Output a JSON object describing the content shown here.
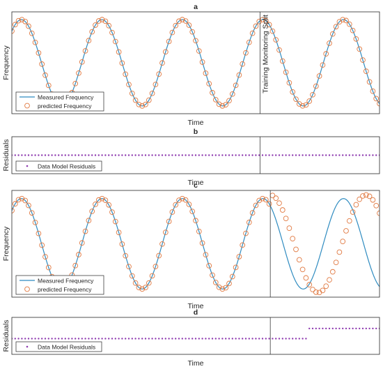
{
  "colors": {
    "measured": "#2e8bc0",
    "predicted": "#e07840",
    "residuals": "#8e3bb0",
    "axes": "#262626",
    "split": "#505050"
  },
  "split_label": "Training Monitoring Split",
  "chart_data": [
    {
      "id": "a",
      "type": "line",
      "title": "a",
      "xlabel": "Time",
      "ylabel": "Frequency",
      "xlim": [
        0,
        100
      ],
      "ylim": [
        -1.18,
        1.18
      ],
      "split_x": 67.5,
      "legend_position": "bottom-left",
      "series": [
        {
          "name": "Measured Frequency",
          "kind": "sinusoid",
          "period": 21.9,
          "amplitude": 1.0,
          "peak_x": 2.6,
          "x_start": 0,
          "x_end": 100
        },
        {
          "name": "predicted Frequency",
          "kind": "sinusoid-sampled",
          "period": 21.9,
          "amplitude": 1.0,
          "peak_x": 2.6,
          "x_start": 0,
          "x_end": 100,
          "samples": 110
        }
      ]
    },
    {
      "id": "b",
      "type": "scatter",
      "title": "b",
      "xlabel": "Time",
      "ylabel": "Residuals",
      "xlim": [
        0,
        100
      ],
      "ylim": [
        -1,
        1
      ],
      "split_x": 67.5,
      "legend_position": "bottom-left",
      "series": [
        {
          "name": "Data Model Residuals",
          "kind": "step",
          "x_start": 0,
          "x_end": 100,
          "samples": 110,
          "value_before": 0,
          "value_after": 0,
          "step_x": 67.5
        }
      ]
    },
    {
      "id": "c",
      "type": "line",
      "title": "c",
      "xlabel": "Time",
      "ylabel": "Frequency",
      "xlim": [
        0,
        100
      ],
      "ylim": [
        -1.18,
        1.18
      ],
      "split_x": 70.3,
      "legend_position": "bottom-left",
      "series": [
        {
          "name": "Measured Frequency",
          "kind": "sinusoid",
          "period": 21.9,
          "amplitude": 1.0,
          "peak_x": 2.6,
          "x_start": 0,
          "x_end": 100
        },
        {
          "name": "predicted Frequency",
          "kind": "sinusoid-sampled",
          "period": 21.9,
          "amplitude": 1.0,
          "peak_x": 2.6,
          "x_start": 0,
          "x_end": 100,
          "samples": 110,
          "drift_after": 70.3,
          "drift_period": 26.0,
          "drift_amplitude": 1.08
        }
      ]
    },
    {
      "id": "d",
      "type": "scatter",
      "title": "d",
      "xlabel": "Time",
      "ylabel": "Residuals",
      "xlim": [
        0,
        100
      ],
      "ylim": [
        -1,
        1
      ],
      "split_x": 70.3,
      "legend_position": "bottom-left",
      "series": [
        {
          "name": "Data Model Residuals",
          "kind": "step",
          "x_start": 0,
          "x_end": 100,
          "samples": 110,
          "value_before": -0.15,
          "value_after": 0.4,
          "step_x": 80.5
        }
      ]
    }
  ]
}
